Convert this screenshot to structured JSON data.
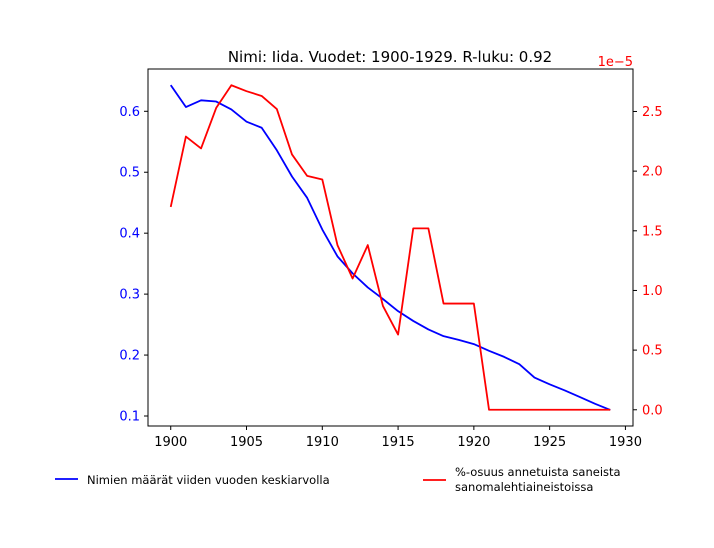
{
  "chart_data": {
    "type": "line",
    "title": "Nimi: Iida. Vuodet: 1900-1929. R-luku: 0.92",
    "x": [
      1900,
      1901,
      1902,
      1903,
      1904,
      1905,
      1906,
      1907,
      1908,
      1909,
      1910,
      1911,
      1912,
      1913,
      1914,
      1915,
      1916,
      1917,
      1918,
      1919,
      1920,
      1921,
      1922,
      1923,
      1924,
      1925,
      1926,
      1927,
      1928,
      1929
    ],
    "xlim": [
      1898.5,
      1930.5
    ],
    "x_ticks": [
      1900,
      1905,
      1910,
      1915,
      1920,
      1925,
      1930
    ],
    "series": [
      {
        "name": "Nimien määrät viiden vuoden keskiarvolla",
        "axis": "left",
        "color": "#0000ff",
        "values": [
          0.643,
          0.607,
          0.618,
          0.616,
          0.603,
          0.583,
          0.573,
          0.536,
          0.493,
          0.458,
          0.406,
          0.362,
          0.334,
          0.311,
          0.292,
          0.272,
          0.256,
          0.242,
          0.231,
          0.225,
          0.218,
          0.207,
          0.197,
          0.185,
          0.163,
          0.152,
          0.142,
          0.131,
          0.12,
          0.11
        ]
      },
      {
        "name": "%-osuus annetuista saneista sanomalehtiaineistoissa",
        "legend_lines": [
          "%-osuus annetuista saneista",
          "sanomalehtiaineistoissa"
        ],
        "axis": "right",
        "color": "#ff0000",
        "values": [
          1.7,
          2.29,
          2.19,
          2.53,
          2.72,
          2.67,
          2.63,
          2.52,
          2.14,
          1.96,
          1.93,
          1.38,
          1.1,
          1.38,
          0.87,
          0.63,
          1.52,
          1.52,
          0.89,
          0.89,
          0.89,
          0.0,
          0.0,
          0.0,
          0.0,
          0.0,
          0.0,
          0.0,
          0.0,
          0.0
        ]
      }
    ],
    "left_axis": {
      "ylim": [
        0.0836,
        0.6694
      ],
      "ticks": [
        0.1,
        0.2,
        0.3,
        0.4,
        0.5,
        0.6
      ],
      "tick_labels": [
        "0.1",
        "0.2",
        "0.3",
        "0.4",
        "0.5",
        "0.6"
      ],
      "color": "#0000ff"
    },
    "right_axis": {
      "ylim": [
        -0.136,
        2.856
      ],
      "ticks": [
        0.0,
        0.5,
        1.0,
        1.5,
        2.0,
        2.5
      ],
      "tick_labels": [
        "0.0",
        "0.5",
        "1.0",
        "1.5",
        "2.0",
        "2.5"
      ],
      "offset_label": "1e−5",
      "color": "#ff0000"
    },
    "grid": false,
    "legend_placement": "below"
  }
}
